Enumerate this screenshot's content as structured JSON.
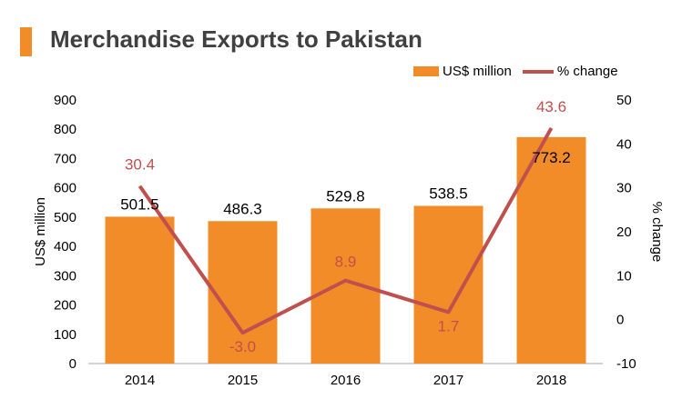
{
  "title": "Merchandise Exports to Pakistan",
  "colors": {
    "bar": "#f28c28",
    "line": "#c0504d",
    "title_accent": "#f28c28"
  },
  "chart_data": {
    "type": "bar",
    "categories": [
      "2014",
      "2015",
      "2016",
      "2017",
      "2018"
    ],
    "series": [
      {
        "name": "US$ million",
        "type": "bar",
        "axis": "left",
        "values": [
          501.5,
          486.3,
          529.8,
          538.5,
          773.2
        ]
      },
      {
        "name": "% change",
        "type": "line",
        "axis": "right",
        "values": [
          30.4,
          -3.0,
          8.9,
          1.7,
          43.6
        ]
      }
    ],
    "bar_labels": [
      "501.5",
      "486.3",
      "529.8",
      "538.5",
      "773.2"
    ],
    "line_labels": [
      "30.4",
      "-3.0",
      "8.9",
      "1.7",
      "43.6"
    ],
    "ylabel": "US$ million",
    "y2label": "% change",
    "ylim": [
      0,
      900
    ],
    "y2lim": [
      -10,
      50
    ],
    "yticks": [
      "0",
      "100",
      "200",
      "300",
      "400",
      "500",
      "600",
      "700",
      "800",
      "900"
    ],
    "y2ticks": [
      "-10",
      "0",
      "10",
      "20",
      "30",
      "40",
      "50"
    ],
    "grid": false,
    "legend_position": "top-right"
  }
}
